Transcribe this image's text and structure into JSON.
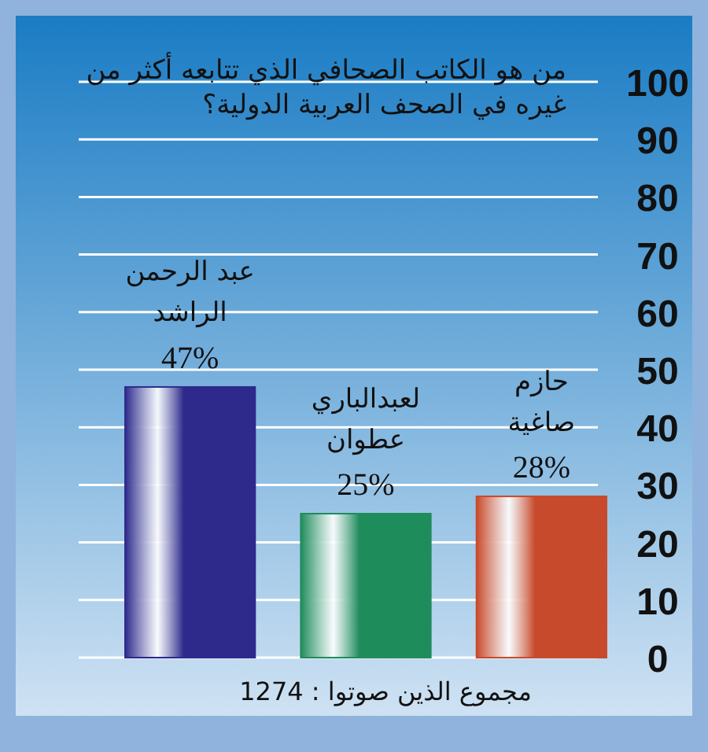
{
  "chart_data": {
    "type": "bar",
    "title": "من هو الكاتب الصحافي الذي تتابعه أكثر من غيره في الصحف العربية الدولية؟",
    "categories": [
      "عبد الرحمن الراشد",
      "لعبدالباري عطوان",
      "حازم صاغية"
    ],
    "values": [
      47,
      25,
      28
    ],
    "colors": [
      "#2e2a8c",
      "#1f8c5c",
      "#c84a2c"
    ],
    "value_labels": [
      "47%",
      "25%",
      "28%"
    ],
    "ylim": [
      0,
      100
    ],
    "yticks": [
      0,
      10,
      20,
      30,
      40,
      50,
      60,
      70,
      80,
      90,
      100
    ],
    "grid": "y",
    "annotations": [
      "مجموع الذين صوتوا : 1274"
    ]
  }
}
